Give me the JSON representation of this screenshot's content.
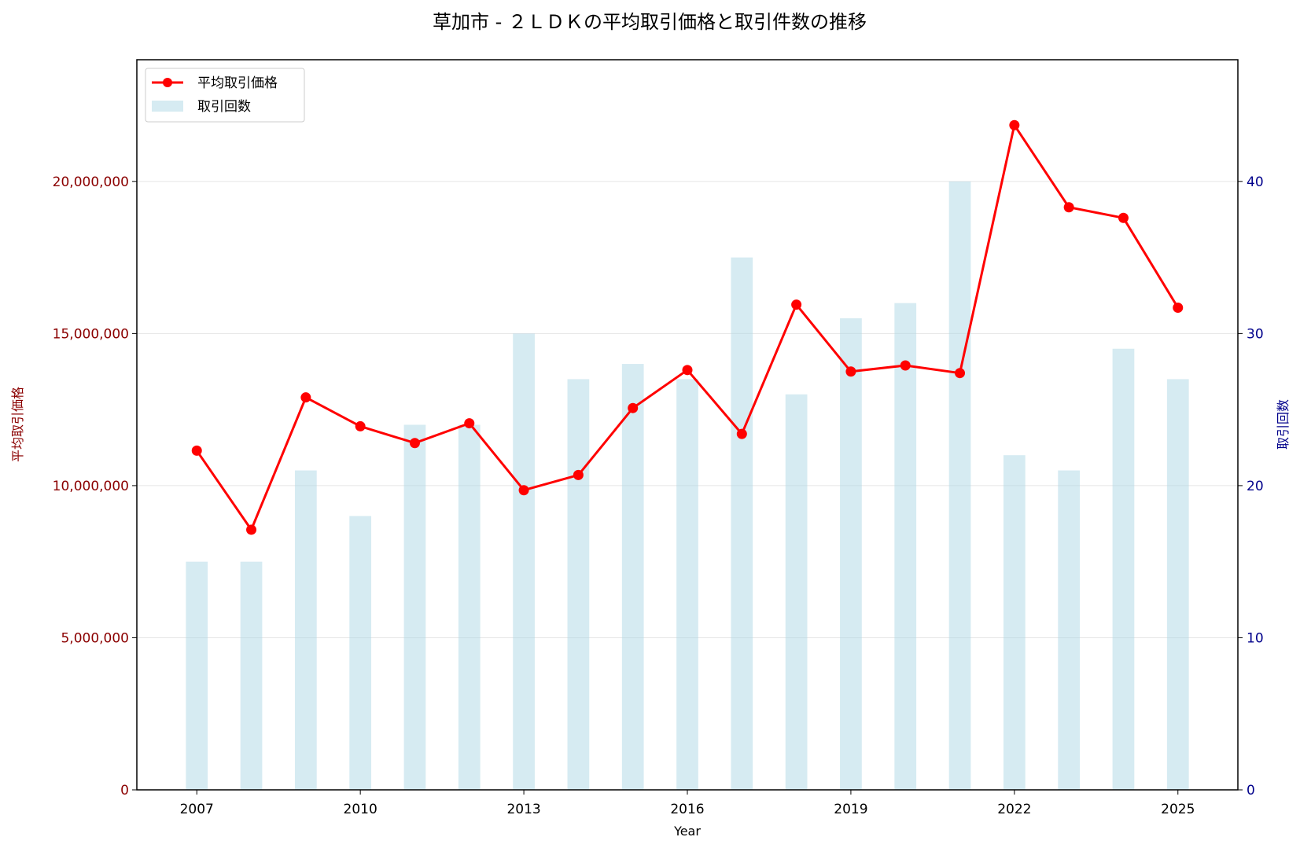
{
  "chart_data": {
    "type": "bar+line",
    "title": "草加市 - ２ＬＤＫの平均取引価格と取引件数の推移",
    "xlabel": "Year",
    "ylabel_left": "平均取引価格",
    "ylabel_right": "取引回数",
    "x": [
      2007,
      2008,
      2009,
      2010,
      2011,
      2012,
      2013,
      2014,
      2015,
      2016,
      2017,
      2018,
      2019,
      2020,
      2021,
      2022,
      2023,
      2024,
      2025
    ],
    "x_ticks": [
      2007,
      2010,
      2013,
      2016,
      2019,
      2022,
      2025
    ],
    "xlim": [
      2005.9,
      2026.1
    ],
    "ylim_left": [
      0,
      24000000
    ],
    "ylim_right": [
      0,
      48
    ],
    "yticks_left": [
      0,
      5000000,
      10000000,
      15000000,
      20000000
    ],
    "yticks_left_labels": [
      "0",
      "5,000,000",
      "10,000,000",
      "15,000,000",
      "20,000,000"
    ],
    "yticks_right": [
      0,
      10,
      20,
      30,
      40
    ],
    "yticks_right_labels": [
      "0",
      "10",
      "20",
      "30",
      "40"
    ],
    "grid": true,
    "legend_position": "top-left",
    "series": [
      {
        "name": "平均取引価格",
        "kind": "line",
        "axis": "left",
        "color": "#ff0000",
        "values": [
          11150000,
          8550000,
          12900000,
          11950000,
          11400000,
          12050000,
          9850000,
          10350000,
          12550000,
          13800000,
          11700000,
          15950000,
          13750000,
          13950000,
          13700000,
          21850000,
          19150000,
          18800000,
          15850000
        ]
      },
      {
        "name": "取引回数",
        "kind": "bar",
        "axis": "right",
        "color": "#add8e6",
        "values": [
          15,
          15,
          21,
          18,
          24,
          24,
          30,
          27,
          28,
          27,
          35,
          26,
          31,
          32,
          40,
          22,
          21,
          29,
          27
        ]
      }
    ]
  }
}
